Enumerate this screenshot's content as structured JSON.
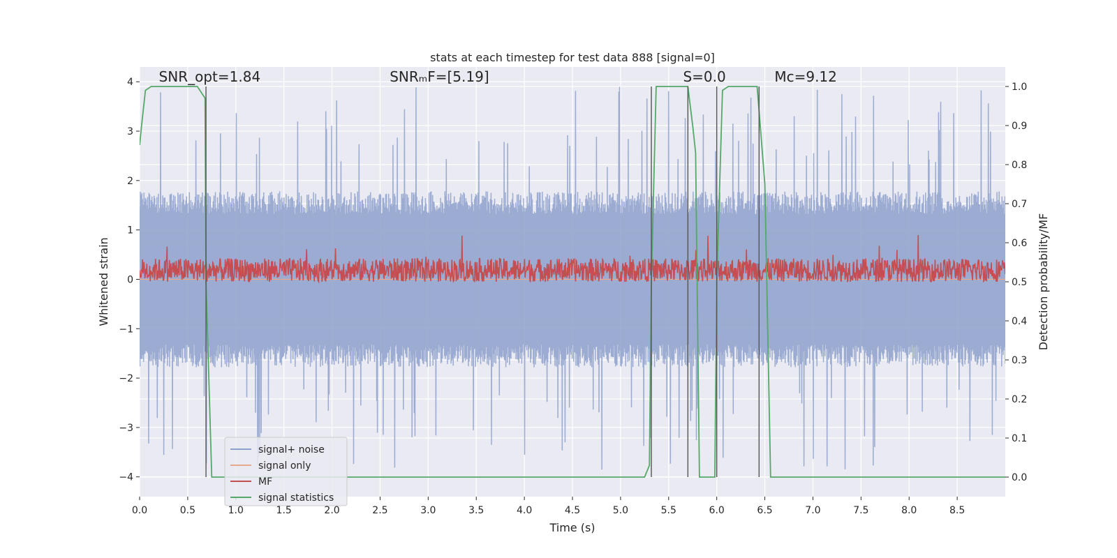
{
  "chart_data": {
    "type": "line",
    "title": "stats at each timestep for test data 888 [signal=0]",
    "xlabel": "Time (s)",
    "ylabel": "Whitened strain",
    "y2label": "Detection probability/MF",
    "xlim": [
      0.0,
      9.0
    ],
    "ylim": [
      -4.4,
      4.3
    ],
    "y2lim": [
      -0.05,
      1.05
    ],
    "xticks": [
      0.0,
      0.5,
      1.0,
      1.5,
      2.0,
      2.5,
      3.0,
      3.5,
      4.0,
      4.5,
      5.0,
      5.5,
      6.0,
      6.5,
      7.0,
      7.5,
      8.0,
      8.5
    ],
    "xtick_labels": [
      "0.0",
      "0.5",
      "1.0",
      "1.5",
      "2.0",
      "2.5",
      "3.0",
      "3.5",
      "4.0",
      "4.5",
      "5.0",
      "5.5",
      "6.0",
      "6.5",
      "7.0",
      "7.5",
      "8.0",
      "8.5"
    ],
    "yticks": [
      -4,
      -3,
      -2,
      -1,
      0,
      1,
      2,
      3,
      4
    ],
    "ytick_labels": [
      "−4",
      "−3",
      "−2",
      "−1",
      "0",
      "1",
      "2",
      "3",
      "4"
    ],
    "y2ticks": [
      0.0,
      0.1,
      0.2,
      0.3,
      0.4,
      0.5,
      0.6,
      0.7,
      0.8,
      0.9,
      1.0
    ],
    "y2tick_labels": [
      "0.0",
      "0.1",
      "0.2",
      "0.3",
      "0.4",
      "0.5",
      "0.6",
      "0.7",
      "0.8",
      "0.9",
      "1.0"
    ],
    "grid": true,
    "legend_position": "bottom-left",
    "annotations": [
      {
        "text": "SNR_opt=1.84",
        "x": 0.2,
        "y": 4.1
      },
      {
        "text": "SNRₘF=[5.19]",
        "x": 2.6,
        "y": 4.1
      },
      {
        "text": "S=0.0",
        "x": 5.65,
        "y": 4.1
      },
      {
        "text": "Mᴄ=9.12",
        "x": 6.6,
        "y": 4.1
      }
    ],
    "series": [
      {
        "name": "signal+ noise",
        "axis": "left",
        "color": "#8da0cb",
        "noise_profile": {
          "fine_amplitude": 1.55,
          "peak_min": -3.5,
          "peak_max": 3.9
        }
      },
      {
        "name": "signal only",
        "axis": "left",
        "color": "#e8a88c",
        "x": [
          0.0,
          9.0
        ],
        "y": [
          0.0,
          0.0
        ]
      },
      {
        "name": "MF",
        "axis": "right",
        "color": "#c44e52",
        "noise_profile": {
          "level_min": 0.5,
          "level_max": 0.56,
          "peak_max": 0.62
        }
      },
      {
        "name": "signal statistics",
        "axis": "right",
        "color": "#55a868",
        "x": [
          0.0,
          0.02,
          0.06,
          0.12,
          0.6,
          0.68,
          0.69,
          0.75,
          0.8,
          5.25,
          5.3,
          5.32,
          5.37,
          5.7,
          5.75,
          5.78,
          5.82,
          5.98,
          6.0,
          6.06,
          6.12,
          6.42,
          6.5,
          6.56,
          9.0
        ],
        "y": [
          0.85,
          0.9,
          0.99,
          1.0,
          1.0,
          0.97,
          0.5,
          0.0,
          0.0,
          0.0,
          0.03,
          0.5,
          1.0,
          1.0,
          0.9,
          0.83,
          0.0,
          0.0,
          0.5,
          0.99,
          1.0,
          1.0,
          0.75,
          0.0,
          0.0
        ]
      }
    ],
    "markers": [
      {
        "x": 0.69,
        "y_top": 1.0,
        "y_bottom": 0.0
      },
      {
        "x": 5.32,
        "y_top": 1.0,
        "y_bottom": 0.0
      },
      {
        "x": 5.7,
        "y_top": 1.0,
        "y_bottom": 0.0
      },
      {
        "x": 6.0,
        "y_top": 1.0,
        "y_bottom": 0.0
      },
      {
        "x": 6.44,
        "y_top": 1.0,
        "y_bottom": 0.0
      }
    ],
    "marker_color": "#555555"
  }
}
